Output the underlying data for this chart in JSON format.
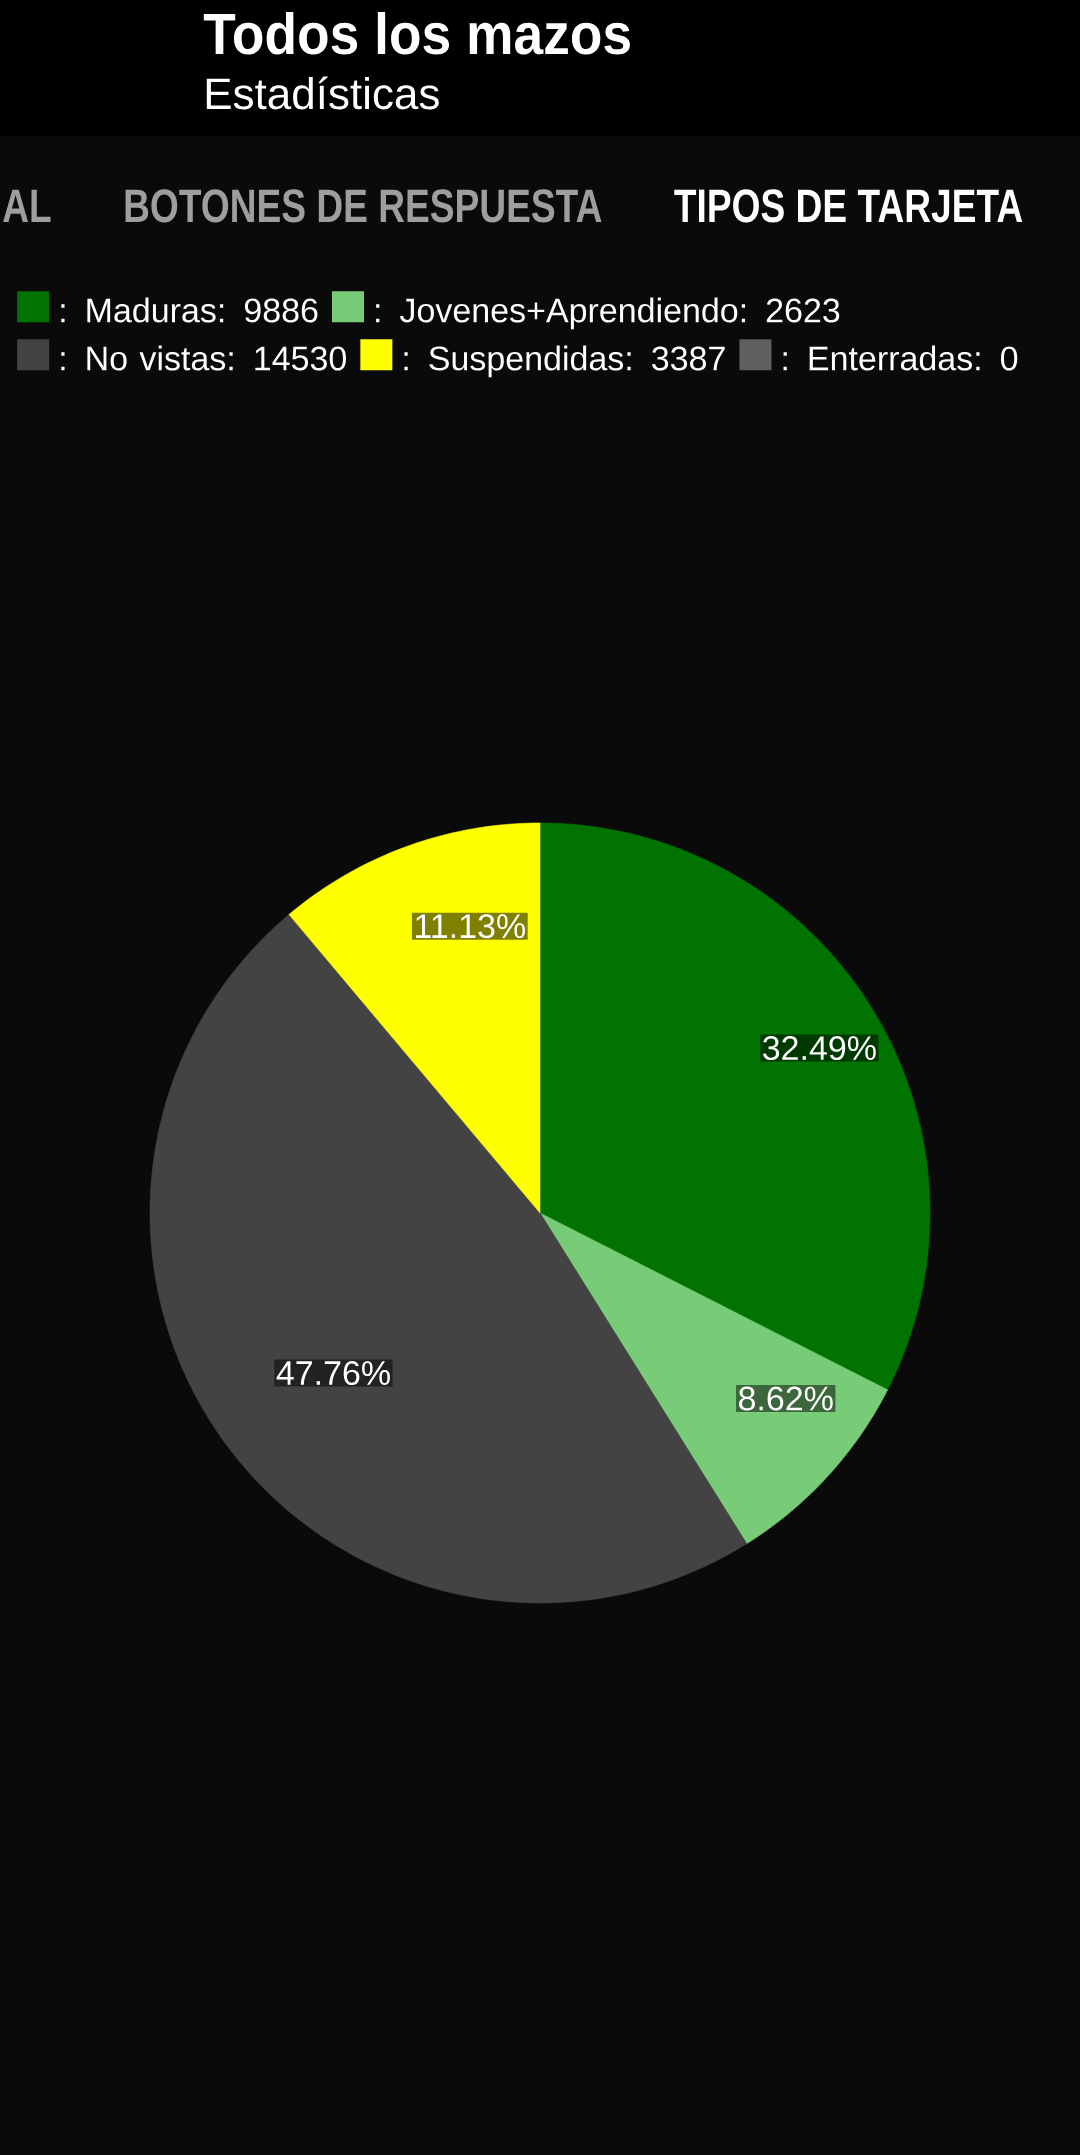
{
  "chart_data": {
    "type": "pie",
    "title": "Todos los mazos",
    "subtitle": "Estadísticas",
    "annotations": [
      "AL",
      "BOTONES DE RESPUESTA",
      "TIPOS DE TARJETA"
    ],
    "categories": [
      ": Maduras: 9886",
      ": Jovenes+Aprendiendo: 2623",
      ": No vistas: 14530",
      ": Suspendidas: 3387",
      ": Enterradas: 0"
    ],
    "values": [
      32.49,
      8.62,
      47.76,
      11.13,
      0
    ],
    "colors": [
      "#017301",
      "#78cc78",
      "#434343",
      "#ffff00",
      "#5f5f5f"
    ],
    "value_labels": [
      "32.49%",
      "8.62%",
      "47.76%",
      "11.13%",
      null
    ],
    "legend": "top left"
  }
}
